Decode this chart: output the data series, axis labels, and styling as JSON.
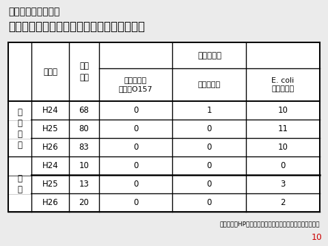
{
  "title_line1": "「参考」厚生労働省",
  "title_line1_display": "【参考】厚生労働省",
  "title_line2": "スプラウトの汚染実態調査の結果（小売店）",
  "footnote": "厚生労働省HP「食品中の食中毒菌汚染実態調査」より抜粋",
  "page_number": "10",
  "col_header_span": "菌検出点数",
  "col1_header": "調査年",
  "col2_header": "調査\n点数",
  "sub_headers": [
    "腸管出血性\n大腸菌O157",
    "サルモネラ",
    "E. coli\n（指標菌）"
  ],
  "row_group_labels": [
    "か\nい\nわ\nれ",
    "豆\n苗"
  ],
  "rows": [
    [
      "H24",
      "68",
      "0",
      "1",
      "10"
    ],
    [
      "H25",
      "80",
      "0",
      "0",
      "11"
    ],
    [
      "H26",
      "83",
      "0",
      "0",
      "10"
    ],
    [
      "H24",
      "10",
      "0",
      "0",
      "0"
    ],
    [
      "H25",
      "13",
      "0",
      "0",
      "3"
    ],
    [
      "H26",
      "20",
      "0",
      "0",
      "2"
    ]
  ],
  "bg_color": "#ebebeb",
  "table_bg": "#ffffff",
  "border_color": "#000000",
  "text_color": "#000000",
  "title1_fontsize": 10,
  "title2_fontsize": 12,
  "cell_fontsize": 8.5,
  "header_fontsize": 8.5,
  "page_num_color": "#cc0000",
  "footnote_fontsize": 6.5,
  "page_num_fontsize": 9
}
